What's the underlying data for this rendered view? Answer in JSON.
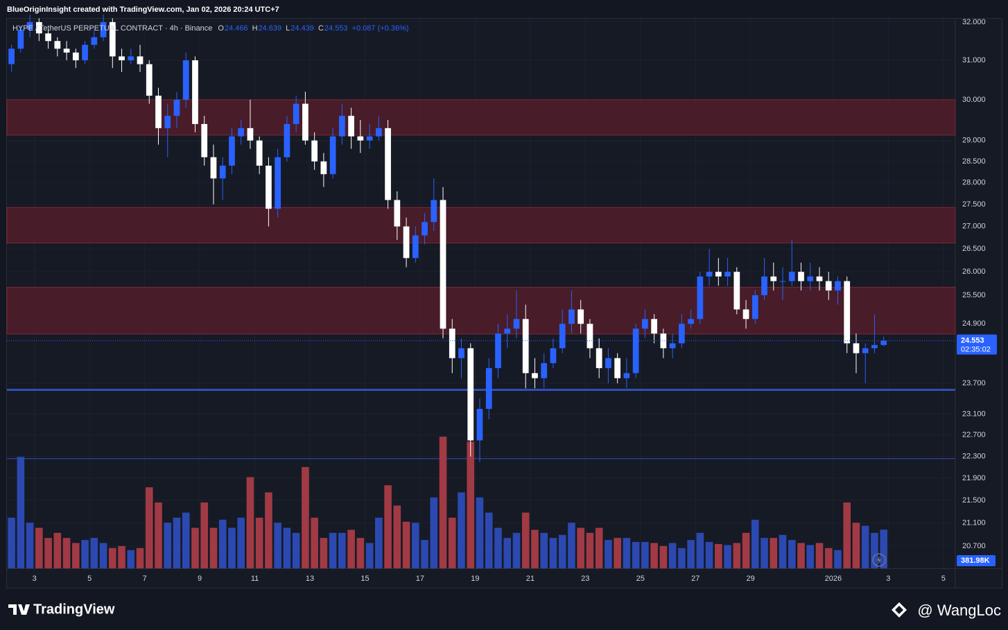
{
  "header": {
    "caption": "BlueOriginInsight created with TradingView.com, Jan 02, 2026 20:24 UTC+7"
  },
  "chart_data": {
    "type": "candlestick",
    "title": "HYPE / TetherUS PERPETUAL CONTRACT · 4h · Binance",
    "ohlc_labels": [
      "O",
      "H",
      "L",
      "C"
    ],
    "change_label": "+0.087 (+0.36%)",
    "open": [
      30.9,
      31.3,
      31.8,
      32.0,
      31.7,
      31.5,
      31.3,
      31.2,
      31.0,
      31.4,
      31.6,
      32.0,
      31.1,
      31.0,
      31.1,
      30.9,
      30.1,
      29.3,
      29.6,
      30.0,
      31.0,
      29.4,
      28.6,
      28.1,
      28.4,
      29.1,
      29.3,
      29.0,
      28.4,
      27.4,
      28.6,
      29.4,
      29.9,
      29.0,
      28.5,
      28.2,
      29.1,
      29.6,
      29.1,
      29.0,
      29.1,
      29.3,
      27.6,
      27.0,
      26.3,
      26.8,
      27.1,
      27.6,
      24.8,
      24.2,
      24.4,
      22.6,
      23.2,
      24.0,
      24.7,
      24.8,
      25.0,
      23.9,
      23.8,
      24.1,
      24.4,
      24.9,
      25.2,
      24.9,
      24.4,
      24.0,
      24.2,
      23.8,
      23.9,
      24.8,
      25.0,
      24.7,
      24.4,
      24.5,
      24.9,
      25.0,
      25.9,
      26.0,
      25.9,
      26.0,
      25.2,
      25.0,
      25.5,
      25.9,
      25.8,
      25.8,
      26.0,
      25.8,
      25.9,
      25.8,
      25.6,
      25.8,
      24.5,
      24.3,
      24.4,
      24.466
    ],
    "high": [
      31.4,
      31.9,
      32.2,
      32.1,
      31.8,
      31.6,
      31.5,
      31.3,
      31.5,
      31.8,
      32.2,
      32.1,
      31.3,
      31.3,
      31.4,
      31.0,
      30.3,
      29.9,
      30.2,
      31.2,
      31.1,
      29.6,
      28.9,
      28.6,
      29.3,
      29.5,
      30.0,
      29.1,
      28.6,
      28.8,
      29.6,
      30.1,
      30.2,
      29.2,
      28.7,
      29.3,
      29.9,
      29.8,
      29.5,
      29.4,
      29.6,
      29.5,
      27.8,
      27.2,
      27.0,
      27.3,
      28.1,
      27.9,
      25.0,
      24.6,
      24.5,
      23.4,
      24.2,
      24.9,
      25.1,
      25.6,
      25.3,
      24.2,
      24.3,
      24.6,
      25.2,
      25.6,
      25.4,
      25.0,
      24.6,
      24.4,
      24.3,
      24.2,
      24.9,
      25.2,
      25.1,
      24.8,
      24.7,
      25.1,
      25.2,
      26.0,
      26.5,
      26.3,
      26.3,
      26.1,
      25.4,
      25.6,
      26.3,
      26.2,
      26.1,
      26.7,
      26.2,
      26.2,
      26.1,
      26.0,
      25.9,
      25.9,
      24.7,
      24.5,
      25.1,
      24.639
    ],
    "low": [
      30.7,
      31.2,
      31.6,
      31.5,
      31.3,
      31.1,
      31.0,
      30.8,
      30.9,
      31.3,
      31.5,
      30.8,
      30.7,
      30.9,
      30.7,
      29.9,
      28.9,
      28.6,
      29.3,
      29.8,
      29.2,
      28.4,
      27.5,
      27.6,
      28.2,
      28.9,
      28.8,
      28.2,
      27.0,
      27.2,
      28.5,
      29.2,
      28.9,
      28.3,
      27.9,
      28.1,
      28.9,
      28.8,
      28.7,
      28.8,
      29.0,
      27.4,
      26.7,
      26.1,
      26.2,
      26.6,
      26.9,
      24.6,
      23.9,
      23.8,
      22.3,
      22.2,
      23.0,
      23.8,
      24.4,
      24.6,
      23.6,
      23.6,
      23.6,
      24.0,
      24.3,
      24.7,
      24.7,
      24.2,
      23.8,
      23.7,
      23.7,
      23.6,
      23.8,
      24.6,
      24.5,
      24.2,
      24.2,
      24.4,
      24.8,
      24.9,
      25.7,
      25.7,
      25.7,
      25.1,
      24.8,
      24.9,
      25.4,
      25.6,
      25.4,
      25.7,
      25.6,
      25.6,
      25.6,
      25.4,
      25.3,
      24.3,
      23.9,
      23.7,
      24.3,
      24.439
    ],
    "close": [
      31.3,
      31.8,
      32.0,
      31.7,
      31.5,
      31.3,
      31.2,
      31.0,
      31.4,
      31.6,
      32.0,
      31.1,
      31.0,
      31.1,
      30.9,
      30.1,
      29.3,
      29.6,
      30.0,
      31.0,
      29.4,
      28.6,
      28.1,
      28.4,
      29.1,
      29.3,
      29.0,
      28.4,
      27.4,
      28.6,
      29.4,
      29.9,
      29.0,
      28.5,
      28.2,
      29.1,
      29.6,
      29.1,
      29.0,
      29.1,
      29.3,
      27.6,
      27.0,
      26.3,
      26.8,
      27.1,
      27.6,
      24.8,
      24.2,
      24.4,
      22.6,
      23.2,
      24.0,
      24.7,
      24.8,
      25.0,
      23.9,
      23.8,
      24.1,
      24.4,
      24.9,
      25.2,
      24.9,
      24.4,
      24.0,
      24.2,
      23.8,
      23.9,
      24.8,
      25.0,
      24.7,
      24.4,
      24.5,
      24.9,
      25.0,
      25.9,
      26.0,
      25.9,
      26.0,
      25.2,
      25.0,
      25.5,
      25.9,
      25.8,
      25.8,
      26.0,
      25.8,
      25.9,
      25.8,
      25.6,
      25.8,
      24.5,
      24.3,
      24.4,
      24.466,
      24.553
    ],
    "volume": [
      500000,
      1100000,
      450000,
      400000,
      300000,
      350000,
      300000,
      250000,
      280000,
      300000,
      250000,
      200000,
      220000,
      180000,
      200000,
      800000,
      650000,
      450000,
      500000,
      550000,
      400000,
      650000,
      400000,
      480000,
      400000,
      500000,
      900000,
      500000,
      750000,
      450000,
      400000,
      350000,
      1000000,
      500000,
      300000,
      350000,
      350000,
      380000,
      300000,
      250000,
      500000,
      820000,
      620000,
      460000,
      450000,
      280000,
      700000,
      1300000,
      500000,
      750000,
      1250000,
      700000,
      550000,
      400000,
      300000,
      350000,
      550000,
      380000,
      350000,
      300000,
      330000,
      450000,
      400000,
      350000,
      400000,
      280000,
      300000,
      300000,
      260000,
      260000,
      250000,
      220000,
      250000,
      200000,
      280000,
      350000,
      260000,
      240000,
      230000,
      250000,
      350000,
      480000,
      300000,
      300000,
      330000,
      280000,
      250000,
      230000,
      250000,
      200000,
      180000,
      650000,
      450000,
      420000,
      350000,
      381980
    ],
    "volume_label": "381.98K",
    "countdown": "02:35:02",
    "up_color": "#2962ff",
    "down_color": "#ffffff",
    "volume_up_color": "#2b49b0",
    "volume_down_color": "#a13a44",
    "log_scale": true,
    "xlim": [
      0,
      103.3
    ],
    "xticks": [
      3,
      {
        "value": 9,
        "label": "5"
      },
      {
        "value": 15,
        "label": "7"
      },
      {
        "value": 21,
        "label": "9"
      },
      {
        "value": 27,
        "label": "11"
      },
      {
        "value": 33,
        "label": "13"
      },
      {
        "value": 39,
        "label": "15"
      },
      {
        "value": 45,
        "label": "17"
      },
      {
        "value": 51,
        "label": "19"
      },
      {
        "value": 57,
        "label": "21"
      },
      {
        "value": 63,
        "label": "23"
      },
      {
        "value": 69,
        "label": "25"
      },
      {
        "value": 75,
        "label": "27"
      },
      {
        "value": 81,
        "label": "29"
      },
      {
        "value": 90,
        "label": "2026"
      },
      {
        "value": 96,
        "label": "3"
      },
      {
        "value": 102,
        "label": "5"
      }
    ],
    "ylim": [
      20.32,
      32.09
    ],
    "yticks": [
      {
        "value": 32,
        "label": "32.000"
      },
      {
        "value": 31,
        "label": "31.000"
      },
      {
        "value": 30,
        "label": "30.000"
      },
      {
        "value": 29,
        "label": "29.000"
      },
      {
        "value": 28.5,
        "label": "28.500"
      },
      {
        "value": 28,
        "label": "28.000"
      },
      {
        "value": 27.5,
        "label": "27.500"
      },
      {
        "value": 27,
        "label": "27.000"
      },
      {
        "value": 26.5,
        "label": "26.500"
      },
      {
        "value": 26,
        "label": "26.000"
      },
      {
        "value": 25.5,
        "label": "25.500"
      },
      {
        "value": 24.9,
        "label": "24.900"
      },
      {
        "value": 23.7,
        "label": "23.700"
      },
      {
        "value": 23.1,
        "label": "23.100"
      },
      {
        "value": 22.7,
        "label": "22.700"
      },
      {
        "value": 22.3,
        "label": "22.300"
      },
      {
        "value": 21.9,
        "label": "21.900"
      },
      {
        "value": 21.5,
        "label": "21.500"
      },
      {
        "value": 21.1,
        "label": "21.100"
      },
      {
        "value": 20.7,
        "label": "20.700"
      }
    ],
    "zones": [
      {
        "low": 29.13,
        "high": 30.0
      },
      {
        "low": 26.63,
        "high": 27.43
      },
      {
        "low": 24.69,
        "high": 25.67
      }
    ],
    "zone_color": "#5a1e2a",
    "support_lines": [
      23.57,
      22.26
    ],
    "support_color": "#2f4fb5",
    "grid": true
  },
  "footer": {
    "brand": "TradingView",
    "author": "@ WangLoc"
  }
}
